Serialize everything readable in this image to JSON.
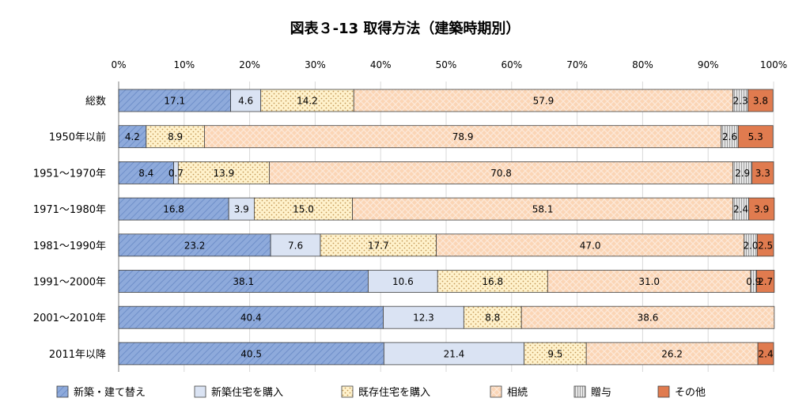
{
  "chart_data": {
    "type": "bar",
    "orientation": "horizontal",
    "stacked": true,
    "title": "図表３-13 取得方法（建築時期別）",
    "xlabel": "",
    "ylabel": "",
    "xlim": [
      0,
      100
    ],
    "x_ticks": [
      "0%",
      "10%",
      "20%",
      "30%",
      "40%",
      "50%",
      "60%",
      "70%",
      "80%",
      "90%",
      "100%"
    ],
    "legend_position": "bottom",
    "grid": true,
    "categories": [
      "総数",
      "1950年以前",
      "1951～1970年",
      "1971～1980年",
      "1981～1990年",
      "1991～2000年",
      "2001～2010年",
      "2011年以降"
    ],
    "series": [
      {
        "name": "新築・建て替え",
        "color": "#8eaadb",
        "pattern": "diagonal-lines",
        "values": [
          17.1,
          4.2,
          8.4,
          16.8,
          23.2,
          38.1,
          40.4,
          40.5
        ],
        "labels": [
          "17.1",
          "4.2",
          "8.4",
          "16.8",
          "23.2",
          "38.1",
          "40.4",
          "40.5"
        ]
      },
      {
        "name": "新築住宅を購入",
        "color": "#dae3f3",
        "pattern": "solid",
        "values": [
          4.6,
          0,
          0.7,
          3.9,
          7.6,
          10.6,
          12.3,
          21.4
        ],
        "labels": [
          "4.6",
          "",
          "0.7",
          "3.9",
          "7.6",
          "10.6",
          "12.3",
          "21.4"
        ]
      },
      {
        "name": "既存住宅を購入",
        "color": "#fff2cc",
        "pattern": "dots",
        "values": [
          14.2,
          8.9,
          13.9,
          15.0,
          17.7,
          16.8,
          8.8,
          9.5
        ],
        "labels": [
          "14.2",
          "8.9",
          "13.9",
          "15.0",
          "17.7",
          "16.8",
          "8.8",
          "9.5"
        ]
      },
      {
        "name": "相続",
        "color": "#fbd5b5",
        "pattern": "crosshatch",
        "values": [
          57.9,
          78.9,
          70.8,
          58.1,
          47.0,
          31.0,
          38.6,
          26.2
        ],
        "labels": [
          "57.9",
          "78.9",
          "70.8",
          "58.1",
          "47.0",
          "31.0",
          "38.6",
          "26.2"
        ]
      },
      {
        "name": "贈与",
        "color": "#d9d9d9",
        "pattern": "vertical-lines",
        "values": [
          2.3,
          2.6,
          2.9,
          2.4,
          2.0,
          0.9,
          0,
          0
        ],
        "labels": [
          "2.3",
          "2.6",
          "2.9",
          "2.4",
          "2.0",
          "0.9",
          "",
          ""
        ]
      },
      {
        "name": "その他",
        "color": "#e07b4f",
        "pattern": "solid",
        "values": [
          3.8,
          5.3,
          3.3,
          3.9,
          2.5,
          2.7,
          0,
          2.4
        ],
        "labels": [
          "3.8",
          "5.3",
          "3.3",
          "3.9",
          "2.5",
          "2.7",
          "",
          "2.4"
        ]
      }
    ]
  }
}
